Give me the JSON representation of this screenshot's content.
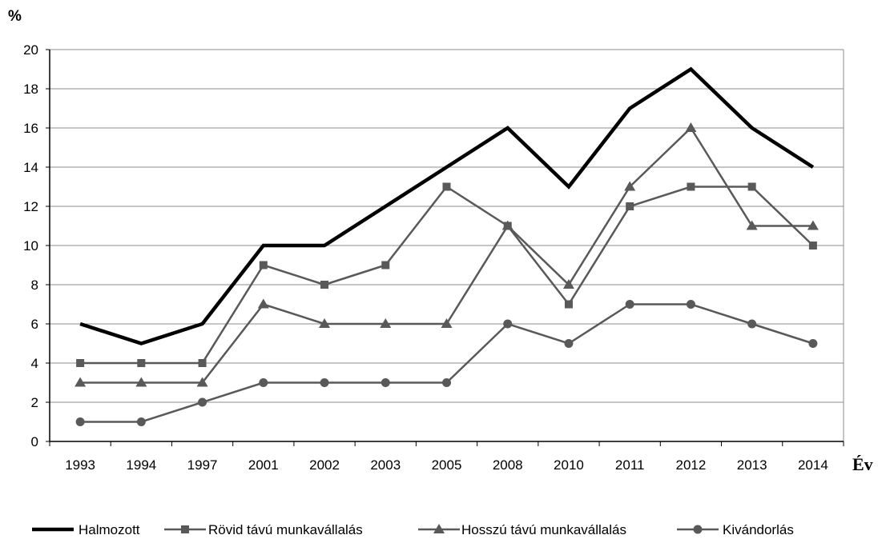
{
  "chart_data": {
    "type": "line",
    "title": "",
    "xlabel": "Év",
    "ylabel": "%",
    "ylim": [
      0,
      20
    ],
    "yticks": [
      0,
      2,
      4,
      6,
      8,
      10,
      12,
      14,
      16,
      18,
      20
    ],
    "grid": true,
    "legend_position": "bottom",
    "categories": [
      "1993",
      "1994",
      "1997",
      "2001",
      "2002",
      "2003",
      "2005",
      "2008",
      "2010",
      "2011",
      "2012",
      "2013",
      "2014"
    ],
    "series": [
      {
        "name": "Halmozott",
        "marker": "none",
        "color": "#000000",
        "values": [
          6,
          5,
          6,
          10,
          10,
          12,
          14,
          16,
          13,
          17,
          19,
          16,
          14
        ]
      },
      {
        "name": "Rövid távú munkavállalás",
        "marker": "square",
        "color": "#595959",
        "values": [
          4,
          4,
          4,
          9,
          8,
          9,
          13,
          11,
          7,
          12,
          13,
          13,
          10
        ]
      },
      {
        "name": "Hosszú távú munkavállalás",
        "marker": "triangle",
        "color": "#595959",
        "values": [
          3,
          3,
          3,
          7,
          6,
          6,
          6,
          11,
          8,
          13,
          16,
          11,
          11
        ]
      },
      {
        "name": "Kivándorlás",
        "marker": "circle",
        "color": "#595959",
        "values": [
          1,
          1,
          2,
          3,
          3,
          3,
          3,
          6,
          5,
          7,
          7,
          6,
          5
        ]
      }
    ]
  }
}
